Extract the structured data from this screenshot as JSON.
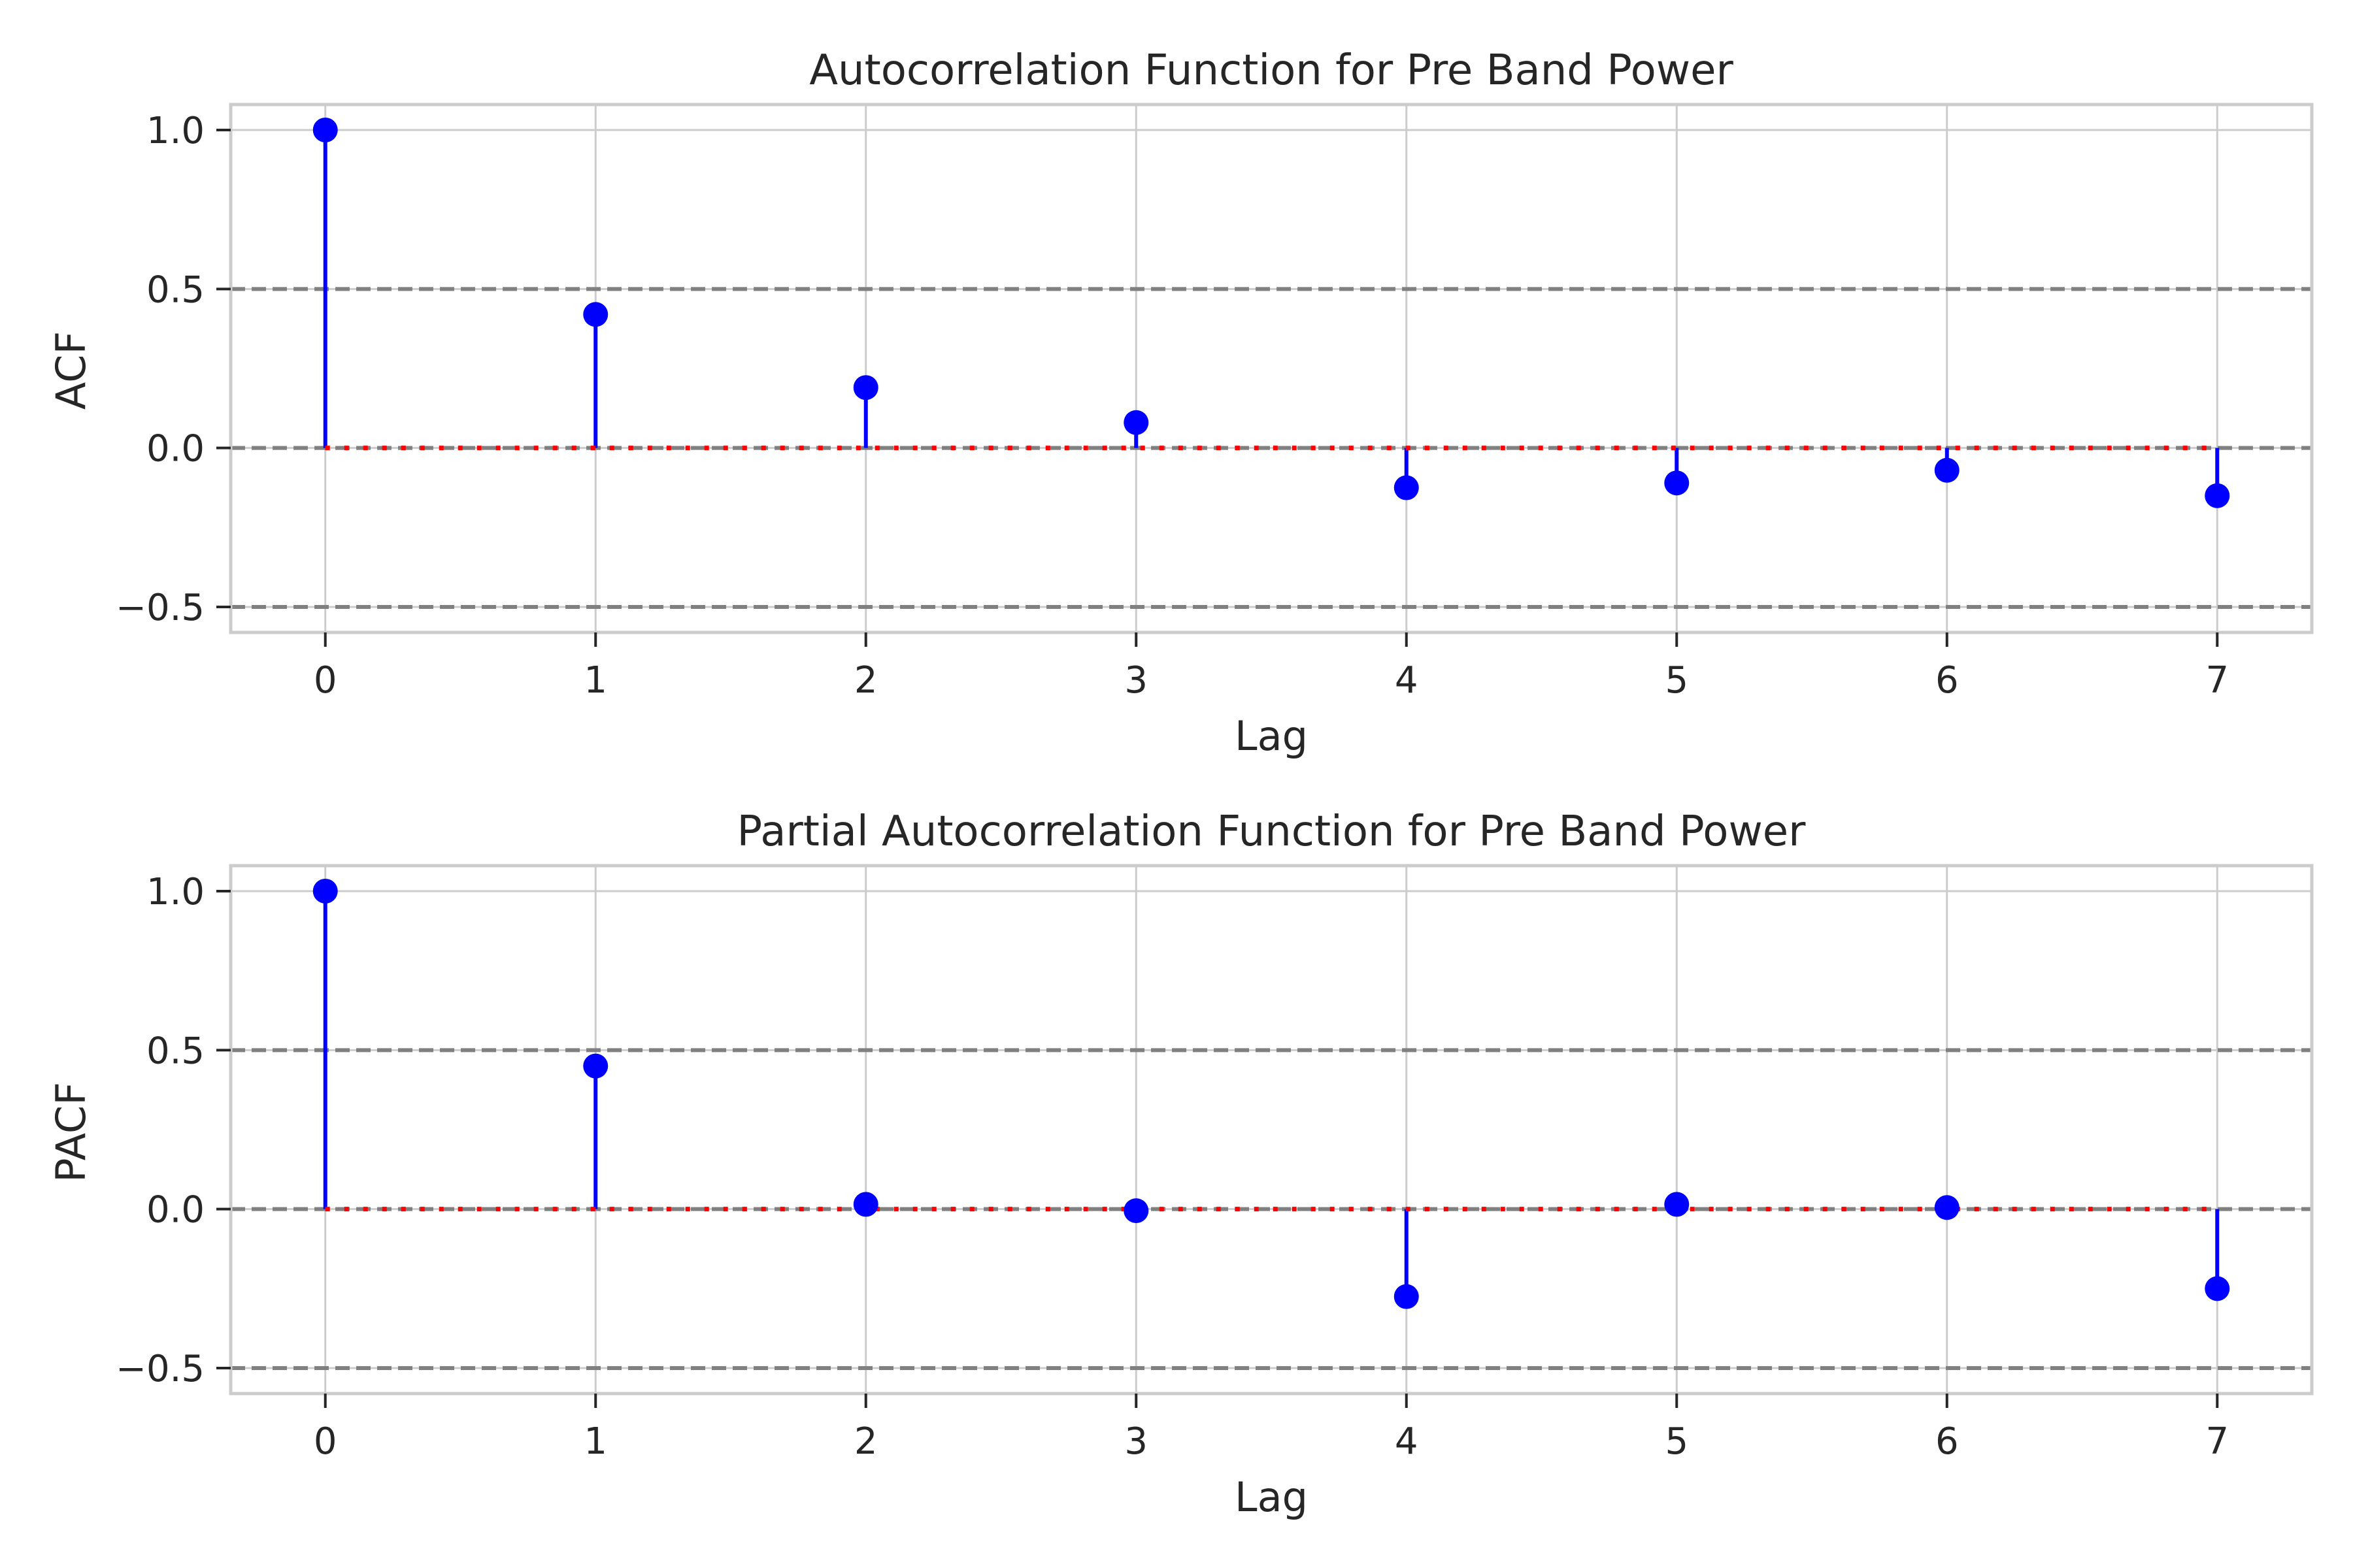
{
  "chart_data": [
    {
      "type": "stem",
      "title": "Autocorrelation Function for Pre Band Power",
      "xlabel": "Lag",
      "ylabel": "ACF",
      "x": [
        0,
        1,
        2,
        3,
        4,
        5,
        6,
        7
      ],
      "values": [
        1.0,
        0.42,
        0.19,
        0.08,
        -0.125,
        -0.11,
        -0.07,
        -0.15
      ],
      "xlim": [
        -0.35,
        7.35
      ],
      "ylim": [
        -0.58,
        1.08
      ],
      "xticks": [
        "0",
        "1",
        "2",
        "3",
        "4",
        "5",
        "6",
        "7"
      ],
      "yticks": [
        -0.5,
        0.0,
        0.5,
        1.0
      ],
      "ytick_labels": [
        "−0.5",
        "0.0",
        "0.5",
        "1.0"
      ],
      "reference_lines": [
        -0.5,
        0.0,
        0.5
      ],
      "grid": true,
      "colors": {
        "stem": "#0000ff",
        "baseline": "#ff0000",
        "reference": "#808080",
        "grid": "#cccccc"
      }
    },
    {
      "type": "stem",
      "title": "Partial Autocorrelation Function for Pre Band Power",
      "xlabel": "Lag",
      "ylabel": "PACF",
      "x": [
        0,
        1,
        2,
        3,
        4,
        5,
        6,
        7
      ],
      "values": [
        1.0,
        0.45,
        0.015,
        -0.005,
        -0.275,
        0.015,
        0.005,
        -0.25
      ],
      "xlim": [
        -0.35,
        7.35
      ],
      "ylim": [
        -0.58,
        1.08
      ],
      "xticks": [
        "0",
        "1",
        "2",
        "3",
        "4",
        "5",
        "6",
        "7"
      ],
      "yticks": [
        -0.5,
        0.0,
        0.5,
        1.0
      ],
      "ytick_labels": [
        "−0.5",
        "0.0",
        "0.5",
        "1.0"
      ],
      "reference_lines": [
        -0.5,
        0.0,
        0.5
      ],
      "grid": true,
      "colors": {
        "stem": "#0000ff",
        "baseline": "#ff0000",
        "reference": "#808080",
        "grid": "#cccccc"
      }
    }
  ]
}
